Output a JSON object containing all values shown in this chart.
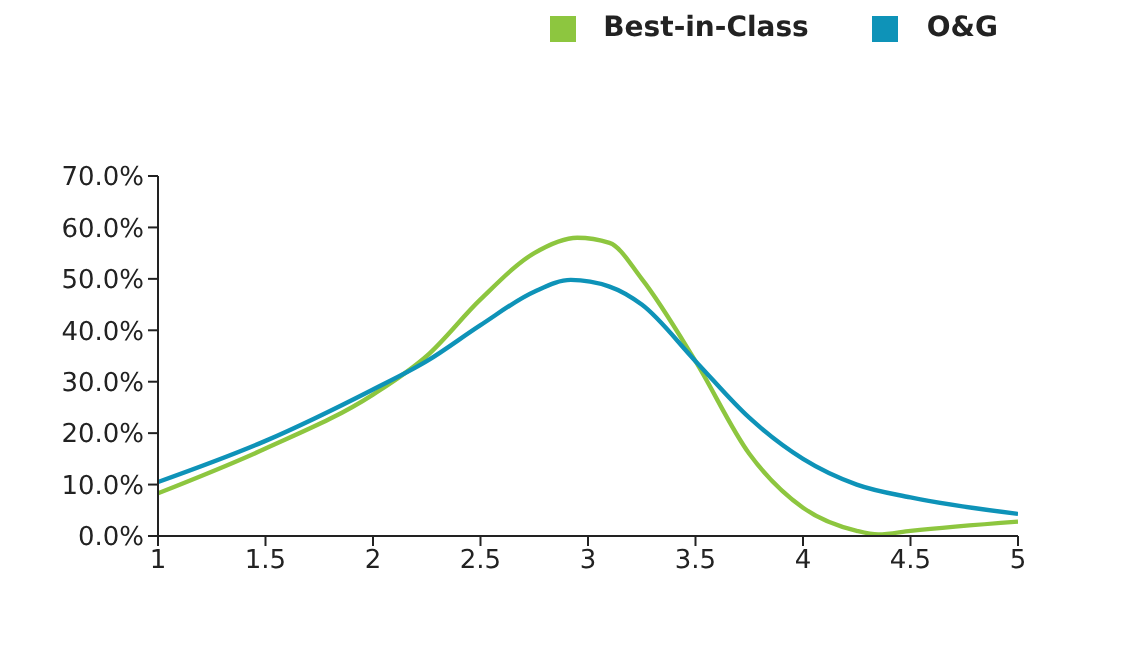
{
  "chart_data": {
    "type": "line",
    "legend": "top right",
    "marker": "none",
    "grid": false,
    "xlim": [
      1,
      5
    ],
    "xticks": [
      1,
      1.5,
      2,
      2.5,
      3,
      3.5,
      4,
      4.5,
      5
    ],
    "ylim": [
      0,
      70
    ],
    "yticks": [
      {
        "value": 0,
        "label": "0.0%"
      },
      {
        "value": 10,
        "label": "10.0%"
      },
      {
        "value": 20,
        "label": "20.0%"
      },
      {
        "value": 30,
        "label": "30.0%"
      },
      {
        "value": 40,
        "label": "40.0%"
      },
      {
        "value": 50,
        "label": "50.0%"
      },
      {
        "value": 60,
        "label": "60.0%"
      },
      {
        "value": 70,
        "label": "70.0%"
      }
    ],
    "series": [
      {
        "name": "Best-in-Class",
        "color": "#8dc63f",
        "x": [
          1,
          1.5,
          2,
          2.25,
          2.5,
          2.75,
          2.95,
          3.1,
          3.25,
          3.5,
          3.75,
          4,
          4.25,
          4.35,
          4.5,
          5
        ],
        "values": [
          8.3,
          17,
          27.5,
          35,
          46,
          55,
          58,
          57,
          50,
          34,
          16,
          5.5,
          1,
          0.3,
          1,
          2.8
        ]
      },
      {
        "name": "O&G",
        "color": "#0e93b8",
        "x": [
          1,
          1.5,
          2,
          2.25,
          2.5,
          2.75,
          2.92,
          3.1,
          3.25,
          3.5,
          3.75,
          4,
          4.25,
          4.5,
          5
        ],
        "values": [
          10.5,
          18.5,
          28.5,
          34,
          41,
          47.5,
          49.8,
          48.5,
          45,
          34,
          23,
          15,
          10,
          7.5,
          4.3
        ]
      }
    ]
  }
}
